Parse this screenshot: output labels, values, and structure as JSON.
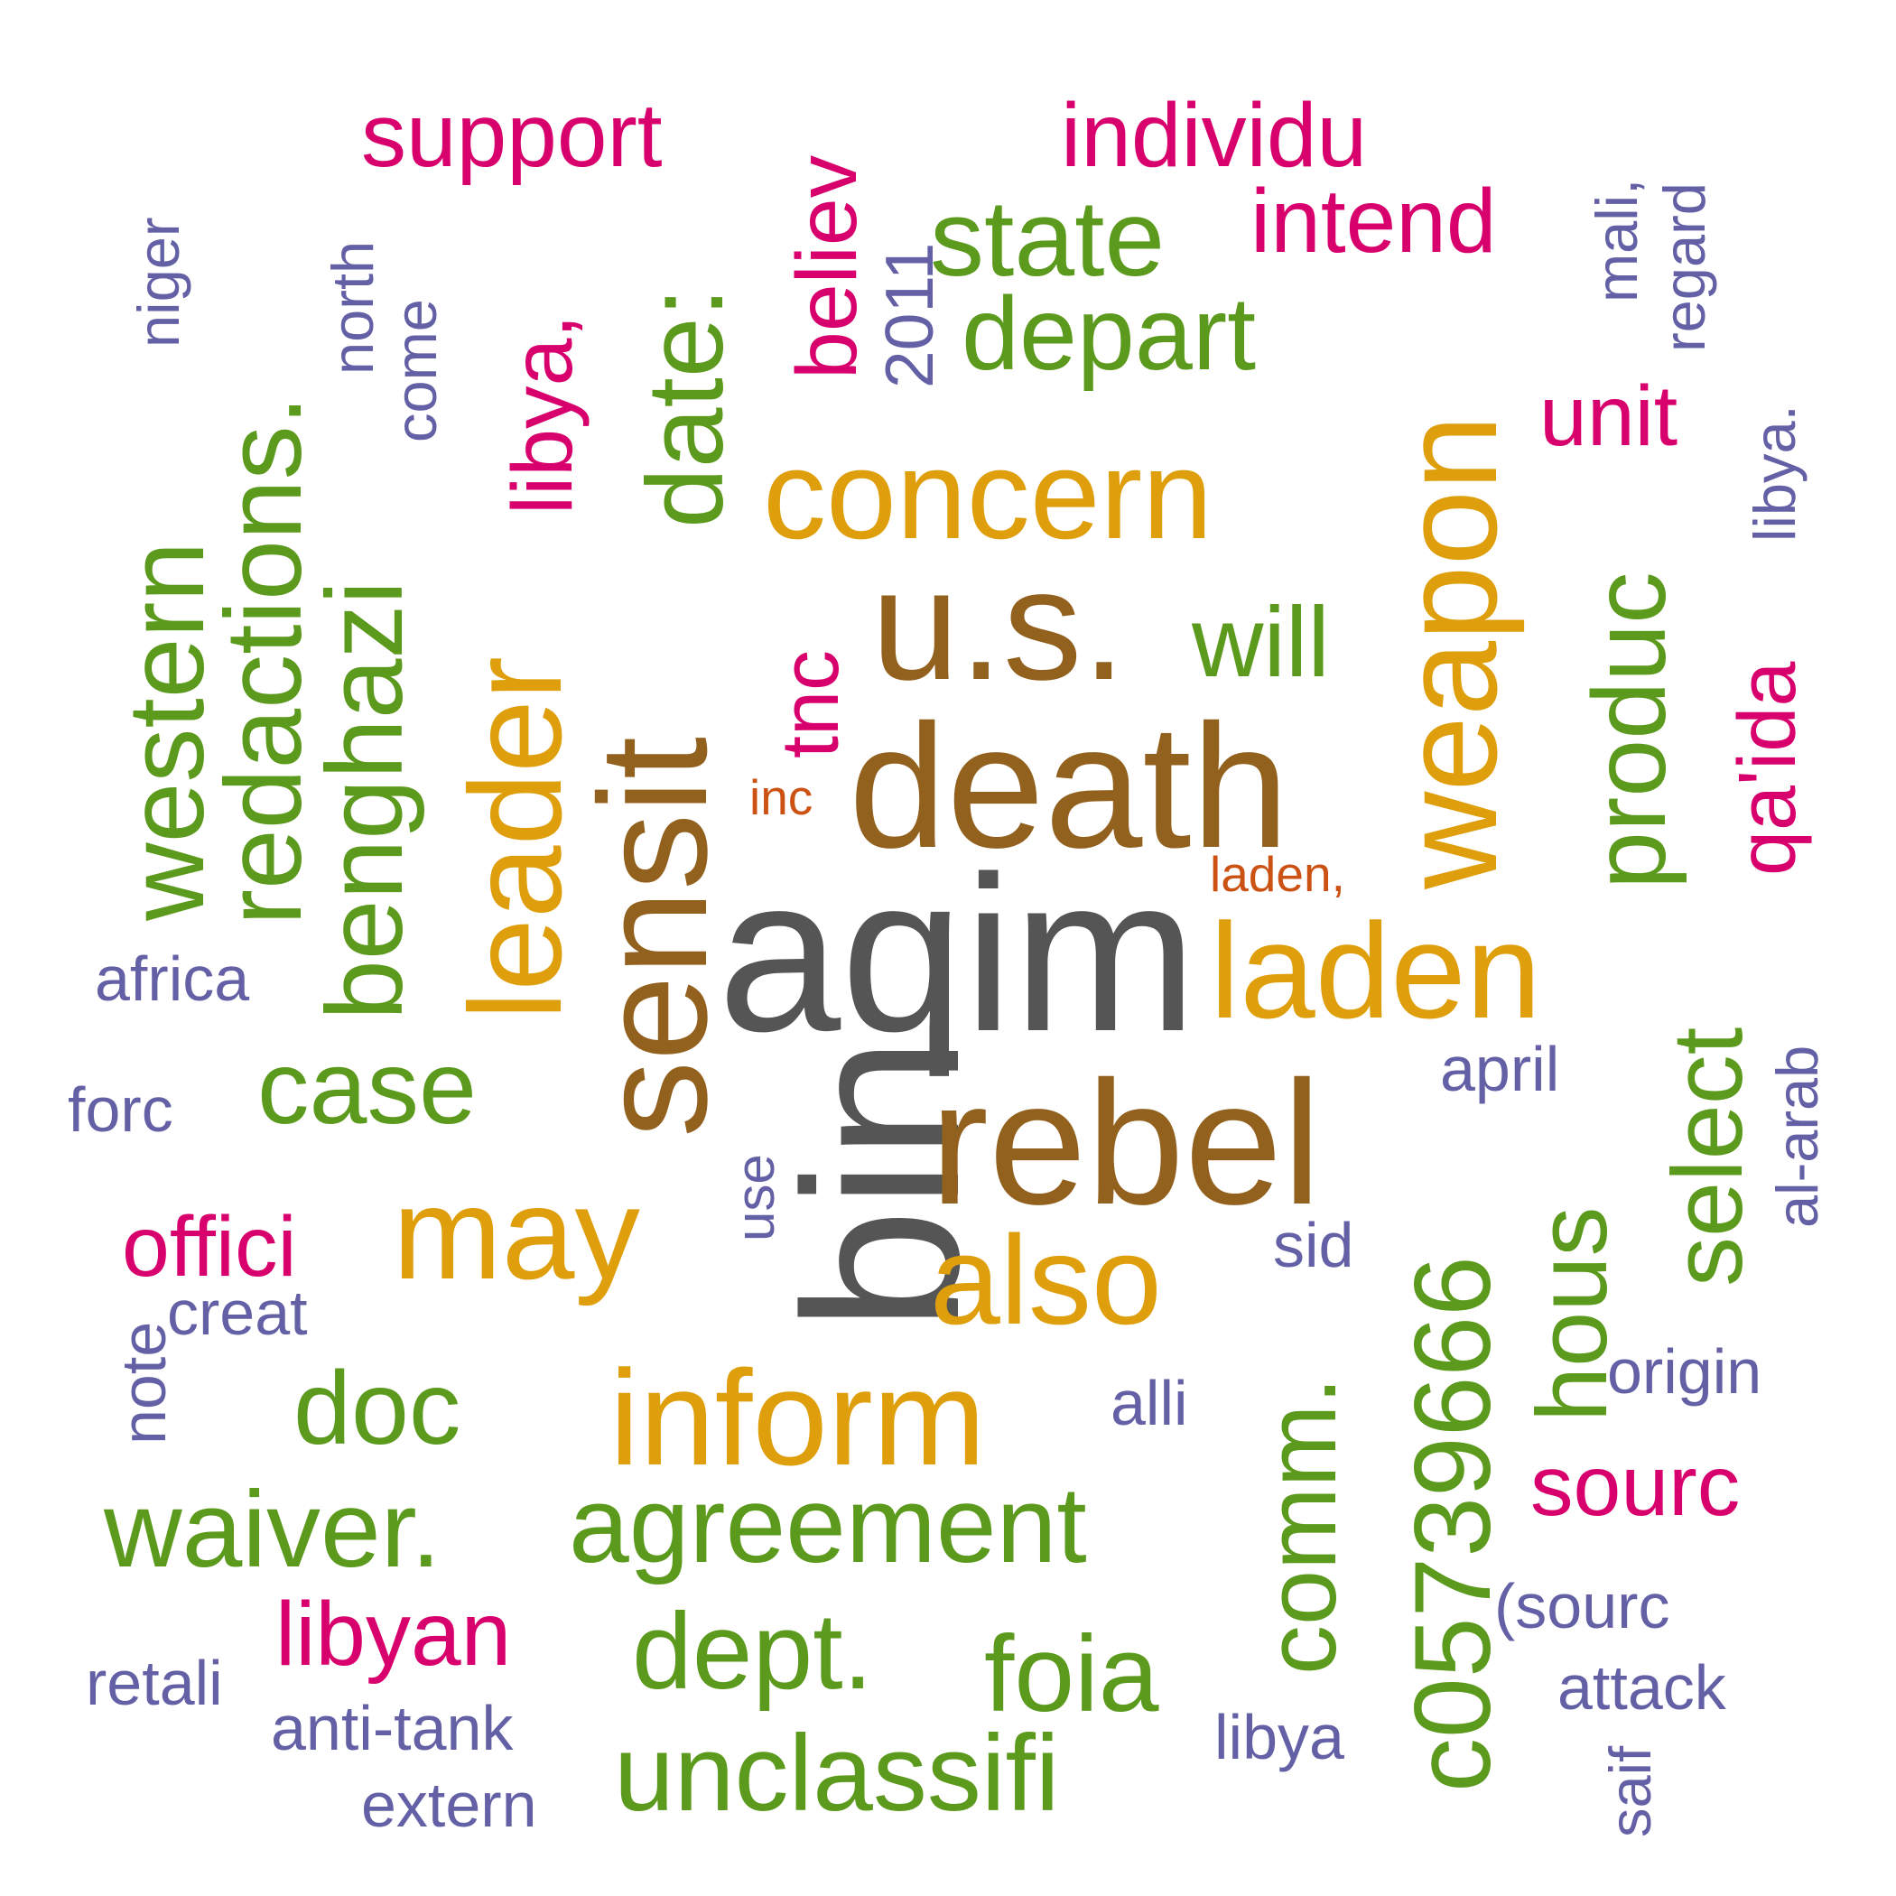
{
  "colors": {
    "gray": "#555555",
    "brown": "#93611E",
    "gold": "#DF9F0C",
    "green": "#5C9A1E",
    "magenta": "#D8006D",
    "purple": "#6460A6",
    "orange": "#CC5214"
  },
  "words": [
    {
      "text": "aqim",
      "color": "gray"
    },
    {
      "text": "bin",
      "color": "gray"
    },
    {
      "text": "death",
      "color": "brown"
    },
    {
      "text": "sensit",
      "color": "brown"
    },
    {
      "text": "rebel",
      "color": "brown"
    },
    {
      "text": "u.s.",
      "color": "brown"
    },
    {
      "text": "concern",
      "color": "gold"
    },
    {
      "text": "weapon",
      "color": "gold"
    },
    {
      "text": "laden",
      "color": "gold"
    },
    {
      "text": "leader",
      "color": "gold"
    },
    {
      "text": "may",
      "color": "gold"
    },
    {
      "text": "also",
      "color": "gold"
    },
    {
      "text": "inform",
      "color": "gold"
    },
    {
      "text": "state",
      "color": "green"
    },
    {
      "text": "depart",
      "color": "green"
    },
    {
      "text": "date:",
      "color": "green"
    },
    {
      "text": "redactions.",
      "color": "green"
    },
    {
      "text": "western",
      "color": "green"
    },
    {
      "text": "benghazi",
      "color": "green"
    },
    {
      "text": "will",
      "color": "green"
    },
    {
      "text": "produc",
      "color": "green"
    },
    {
      "text": "select",
      "color": "green"
    },
    {
      "text": "hous",
      "color": "green"
    },
    {
      "text": "case",
      "color": "green"
    },
    {
      "text": "doc",
      "color": "green"
    },
    {
      "text": "waiver.",
      "color": "green"
    },
    {
      "text": "agreement",
      "color": "green"
    },
    {
      "text": "comm.",
      "color": "green"
    },
    {
      "text": "c05739666",
      "color": "green"
    },
    {
      "text": "dept.",
      "color": "green"
    },
    {
      "text": "foia",
      "color": "green"
    },
    {
      "text": "unclassifi",
      "color": "green"
    },
    {
      "text": "support",
      "color": "magenta"
    },
    {
      "text": "individu",
      "color": "magenta"
    },
    {
      "text": "intend",
      "color": "magenta"
    },
    {
      "text": "believ",
      "color": "magenta"
    },
    {
      "text": "libya,",
      "color": "magenta"
    },
    {
      "text": "unit",
      "color": "magenta"
    },
    {
      "text": "tnc",
      "color": "magenta"
    },
    {
      "text": "qa'ida",
      "color": "magenta"
    },
    {
      "text": "offici",
      "color": "magenta"
    },
    {
      "text": "sourc",
      "color": "magenta"
    },
    {
      "text": "libyan",
      "color": "magenta"
    },
    {
      "text": "niger",
      "color": "purple"
    },
    {
      "text": "north",
      "color": "purple"
    },
    {
      "text": "come",
      "color": "purple"
    },
    {
      "text": "2011",
      "color": "purple"
    },
    {
      "text": "mali,",
      "color": "purple"
    },
    {
      "text": "regard",
      "color": "purple"
    },
    {
      "text": "libya.",
      "color": "purple"
    },
    {
      "text": "africa",
      "color": "purple"
    },
    {
      "text": "forc",
      "color": "purple"
    },
    {
      "text": "use",
      "color": "purple"
    },
    {
      "text": "april",
      "color": "purple"
    },
    {
      "text": "al-arab",
      "color": "purple"
    },
    {
      "text": "sid",
      "color": "purple"
    },
    {
      "text": "creat",
      "color": "purple"
    },
    {
      "text": "note",
      "color": "purple"
    },
    {
      "text": "alli",
      "color": "purple"
    },
    {
      "text": "origin",
      "color": "purple"
    },
    {
      "text": "(sourc",
      "color": "purple"
    },
    {
      "text": "attack",
      "color": "purple"
    },
    {
      "text": "retali",
      "color": "purple"
    },
    {
      "text": "anti-tank",
      "color": "purple"
    },
    {
      "text": "libya",
      "color": "purple"
    },
    {
      "text": "extern",
      "color": "purple"
    },
    {
      "text": "saif",
      "color": "purple"
    },
    {
      "text": "inc",
      "color": "orange"
    },
    {
      "text": "laden,",
      "color": "orange"
    }
  ]
}
